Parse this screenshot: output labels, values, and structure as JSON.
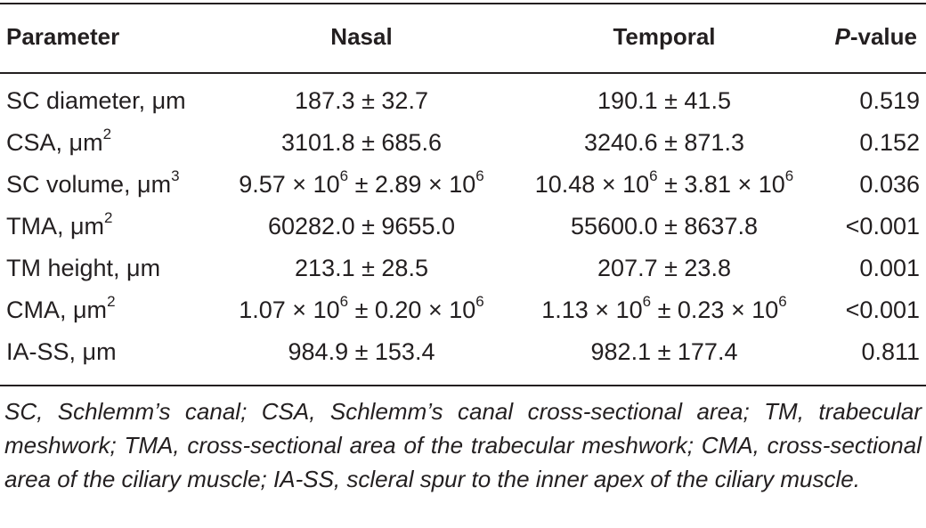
{
  "table": {
    "headers": {
      "parameter": "Parameter",
      "nasal": "Nasal",
      "temporal": "Temporal",
      "pvalue_italic": "P",
      "pvalue_rest": "-value"
    },
    "rows": [
      {
        "param_text": "SC diameter, μm",
        "param_sup": "",
        "nasal_text": "187.3 ± 32.7",
        "temporal_text": "190.1 ± 41.5",
        "pvalue": "0.519"
      },
      {
        "param_text": "CSA, μm",
        "param_sup": "2",
        "nasal_text": "3101.8 ± 685.6",
        "temporal_text": "3240.6 ± 871.3",
        "pvalue": "0.152"
      },
      {
        "param_text": "SC volume, μm",
        "param_sup": "3",
        "nasal_a": "9.57 × 10",
        "nasal_a_sup": "6",
        "nasal_b": " ± 2.89 × 10",
        "nasal_b_sup": "6",
        "temporal_a": "10.48 × 10",
        "temporal_a_sup": "6",
        "temporal_b": " ± 3.81 × 10",
        "temporal_b_sup": "6",
        "pvalue": "0.036"
      },
      {
        "param_text": "TMA, μm",
        "param_sup": "2",
        "nasal_text": "60282.0 ± 9655.0",
        "temporal_text": "55600.0 ± 8637.8",
        "pvalue": "<0.001"
      },
      {
        "param_text": "TM height, μm",
        "param_sup": "",
        "nasal_text": "213.1 ± 28.5",
        "temporal_text": "207.7 ± 23.8",
        "pvalue": "0.001"
      },
      {
        "param_text": "CMA, μm",
        "param_sup": "2",
        "nasal_a": "1.07 × 10",
        "nasal_a_sup": "6",
        "nasal_b": " ± 0.20 × 10",
        "nasal_b_sup": "6",
        "temporal_a": "1.13 × 10",
        "temporal_a_sup": "6",
        "temporal_b": " ± 0.23 × 10",
        "temporal_b_sup": "6",
        "pvalue": "<0.001"
      },
      {
        "param_text": "IA-SS, μm",
        "param_sup": "",
        "nasal_text": "984.9 ± 153.4",
        "temporal_text": "982.1 ± 177.4",
        "pvalue": "0.811"
      }
    ],
    "footnote": "SC, Schlemm’s canal; CSA, Schlemm’s canal cross-sectional area; TM, trabecular meshwork; TMA, cross-sectional area of the trabecular meshwork; CMA, cross-sectional area of the ciliary muscle; IA-SS, scleral spur to the inner apex of the ciliary muscle."
  }
}
